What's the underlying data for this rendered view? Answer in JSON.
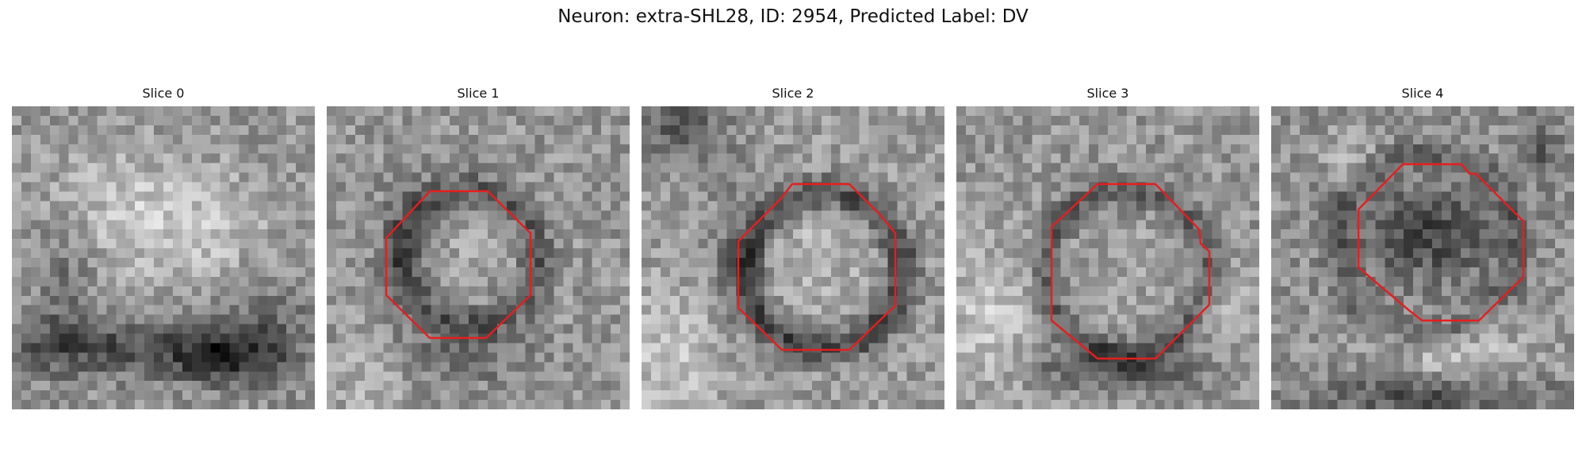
{
  "figure": {
    "title": "Neuron: extra-SHL28, ID: 2954, Predicted Label: DV"
  },
  "colors": {
    "contour": "#e61e1e",
    "background": "#ffffff"
  },
  "slices": [
    {
      "label": "Slice 0",
      "has_contour": false
    },
    {
      "label": "Slice 1",
      "has_contour": true
    },
    {
      "label": "Slice 2",
      "has_contour": true
    },
    {
      "label": "Slice 3",
      "has_contour": true
    },
    {
      "label": "Slice 4",
      "has_contour": true
    }
  ]
}
